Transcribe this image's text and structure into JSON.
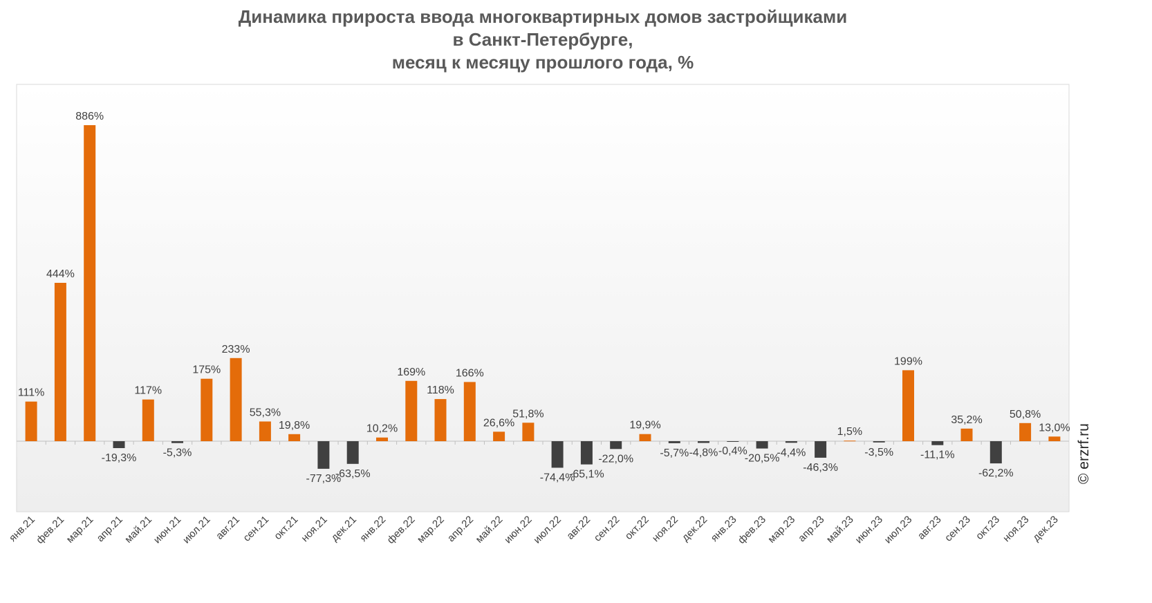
{
  "chart_data": {
    "type": "bar",
    "title": [
      "Динамика прироста ввода многоквартирных домов застройщиками",
      "в Санкт-Петербурге,",
      "месяц к месяцу прошлого года, %"
    ],
    "xlabel": "",
    "ylabel": "",
    "grid": false,
    "legend": "none",
    "ylim": [
      -200,
      1000
    ],
    "colors": {
      "positive": "#E46C0A",
      "negative": "#404040"
    },
    "categories": [
      "янв.21",
      "фев.21",
      "мар.21",
      "апр.21",
      "май.21",
      "июн.21",
      "июл.21",
      "авг.21",
      "сен.21",
      "окт.21",
      "ноя.21",
      "дек.21",
      "янв.22",
      "фев.22",
      "мар.22",
      "апр.22",
      "май.22",
      "июн.22",
      "июл.22",
      "авг.22",
      "сен.22",
      "окт.22",
      "ноя.22",
      "дек.22",
      "янв.23",
      "фев.23",
      "мар.23",
      "апр.23",
      "май.23",
      "июн.23",
      "июл.23",
      "авг.23",
      "сен.23",
      "окт.23",
      "ноя.23",
      "дек.23"
    ],
    "values": [
      111,
      444,
      886,
      -19.3,
      117,
      -5.3,
      175,
      233,
      55.3,
      19.8,
      -77.3,
      -63.5,
      10.2,
      169,
      118,
      166,
      26.6,
      51.8,
      -74.4,
      -65.1,
      -22.0,
      19.9,
      -5.7,
      -4.8,
      -0.4,
      -20.5,
      -4.4,
      -46.3,
      1.5,
      -3.5,
      199,
      -11.1,
      35.2,
      -62.2,
      50.8,
      13.0
    ],
    "data_labels": [
      "111%",
      "444%",
      "886%",
      "-19,3%",
      "117%",
      "-5,3%",
      "175%",
      "233%",
      "55,3%",
      "19,8%",
      "-77,3%",
      "-63,5%",
      "10,2%",
      "169%",
      "118%",
      "166%",
      "26,6%",
      "51,8%",
      "-74,4%",
      "-65,1%",
      "-22,0%",
      "19,9%",
      "-5,7%",
      "-4,8%",
      "-0,4%",
      "-20,5%",
      "-4,4%",
      "-46,3%",
      "1,5%",
      "-3,5%",
      "199%",
      "-11,1%",
      "35,2%",
      "-62,2%",
      "50,8%",
      "13,0%"
    ]
  },
  "watermark": "© erzrf.ru"
}
